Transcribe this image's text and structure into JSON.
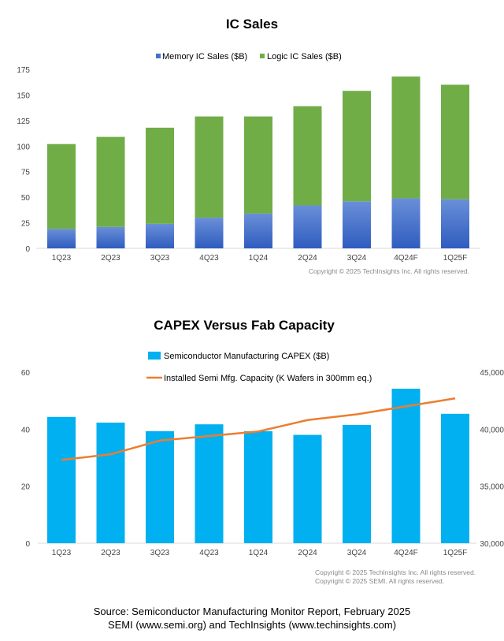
{
  "chart_data": [
    {
      "type": "bar",
      "stacked": true,
      "title": "IC Sales",
      "categories": [
        "1Q23",
        "2Q23",
        "3Q23",
        "4Q23",
        "1Q24",
        "2Q24",
        "3Q24",
        "4Q24F",
        "1Q25F"
      ],
      "series": [
        {
          "name": "Memory IC Sales ($B)",
          "color": "#4472C4",
          "values": [
            19,
            21,
            24,
            30,
            34,
            42,
            46,
            49,
            48
          ]
        },
        {
          "name": "Logic IC Sales ($B)",
          "color": "#70AD47",
          "values": [
            83,
            88,
            94,
            99,
            95,
            97,
            108,
            119,
            112
          ]
        }
      ],
      "ylim": [
        0,
        175
      ],
      "yticks": [
        0,
        25,
        50,
        75,
        100,
        125,
        150,
        175
      ],
      "legend": "top",
      "grid": false,
      "copyright": "Copyright © 2025 TechInsights Inc.  All rights reserved."
    },
    {
      "type": "bar+line",
      "title": "CAPEX Versus Fab Capacity",
      "categories": [
        "1Q23",
        "2Q23",
        "3Q23",
        "4Q23",
        "1Q24",
        "2Q24",
        "3Q24",
        "4Q24F",
        "1Q25F"
      ],
      "series": [
        {
          "name": "Semiconductor Manufacturing CAPEX ($B)",
          "type": "bar",
          "axis": "left",
          "color": "#00B0F0",
          "values": [
            44.3,
            42.3,
            39.3,
            41.7,
            39.3,
            38.0,
            41.5,
            54.2,
            45.4
          ]
        },
        {
          "name": "Installed Semi Mfg. Capacity (K Wafers in 300mm eq.)",
          "type": "line",
          "axis": "right",
          "color": "#ED7D31",
          "values": [
            37300,
            37800,
            39000,
            39400,
            39800,
            40800,
            41300,
            42000,
            42700
          ]
        }
      ],
      "ylim": [
        0,
        60
      ],
      "yticks": [
        0,
        20,
        40,
        60
      ],
      "y2lim": [
        30000,
        45000
      ],
      "y2ticks": [
        "30,000",
        "35,000",
        "40,000",
        "45,000"
      ],
      "legend": "top",
      "grid": false,
      "copyright": [
        "Copyright © 2025 TechInsights Inc.  All rights reserved.",
        "Copyright © 2025 SEMI.  All rights reserved."
      ]
    }
  ],
  "source": {
    "line1": "Source: Semiconductor Manufacturing Monitor Report, February 2025",
    "line2": "SEMI (www.semi.org) and TechInsights (www.techinsights.com)"
  }
}
